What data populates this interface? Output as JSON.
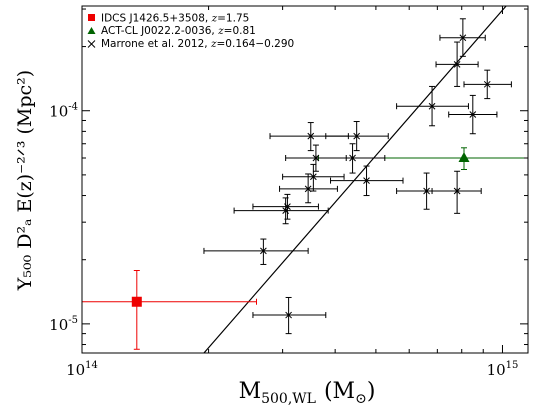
{
  "chart_data": {
    "type": "scatter",
    "xscale": "log",
    "yscale": "log",
    "xlim": [
      100000000000000.0,
      1150000000000000.0
    ],
    "ylim": [
      7.3e-06,
      0.00031
    ],
    "xlabel_main": "M",
    "xlabel_sub": "500,WL",
    "xlabel_unit_open": "(M",
    "xlabel_unit_sub": "⊙",
    "xlabel_unit_close": ")",
    "ylabel": "Y₅₀₀ D²ₐ E(z)⁻²ᐟ³  (Mpc²)",
    "x_ticks": [
      {
        "value": 100000000000000.0,
        "base": "10",
        "exp": "14"
      },
      {
        "value": 1000000000000000.0,
        "base": "10",
        "exp": "15"
      }
    ],
    "y_ticks": [
      {
        "value": 1e-05,
        "base": "10",
        "exp": "-5"
      },
      {
        "value": 0.0001,
        "base": "10",
        "exp": "-4"
      }
    ],
    "fit_line": {
      "points": [
        [
          195000000000000.0,
          7.3e-06
        ],
        [
          1020000000000000.0,
          0.00031
        ]
      ],
      "color": "#000000"
    },
    "series": [
      {
        "name": "IDCS J1426.5+3508,",
        "redshift_label": "1.75",
        "marker": "square",
        "color": "#ee0000",
        "points": [
          {
            "x": 135000000000000.0,
            "y": 1.27e-05,
            "xlo": 100000000000000.0,
            "xhi": 260000000000000.0,
            "ylo": 7.6e-06,
            "yhi": 1.78e-05
          }
        ]
      },
      {
        "name": "ACT-CL J0022.2-0036,",
        "redshift_label": "0.81",
        "marker": "triangle",
        "color": "#006400",
        "points": [
          {
            "x": 810000000000000.0,
            "y": 6e-05,
            "xlo": 365000000000000.0,
            "xhi": 1150000000000000.0,
            "ylo": 5.3e-05,
            "yhi": 6.7e-05
          }
        ]
      },
      {
        "name": "Marrone et al. 2012,",
        "redshift_label": "0.164−0.290",
        "marker": "cross",
        "color": "#000000",
        "points": [
          {
            "x": 310000000000000.0,
            "y": 1.1e-05,
            "xlo": 255000000000000.0,
            "xhi": 380000000000000.0,
            "ylo": 9e-06,
            "yhi": 1.33e-05
          },
          {
            "x": 270000000000000.0,
            "y": 2.2e-05,
            "xlo": 195000000000000.0,
            "xhi": 345000000000000.0,
            "ylo": 1.9e-05,
            "yhi": 2.5e-05
          },
          {
            "x": 305000000000000.0,
            "y": 3.4e-05,
            "xlo": 230000000000000.0,
            "xhi": 385000000000000.0,
            "ylo": 2.95e-05,
            "yhi": 3.9e-05
          },
          {
            "x": 308000000000000.0,
            "y": 3.55e-05,
            "xlo": 255000000000000.0,
            "xhi": 365000000000000.0,
            "ylo": 3.1e-05,
            "yhi": 4.05e-05
          },
          {
            "x": 345000000000000.0,
            "y": 4.3e-05,
            "xlo": 295000000000000.0,
            "xhi": 405000000000000.0,
            "ylo": 3.7e-05,
            "yhi": 5.05e-05
          },
          {
            "x": 355000000000000.0,
            "y": 4.9e-05,
            "xlo": 300000000000000.0,
            "xhi": 420000000000000.0,
            "ylo": 4.2e-05,
            "yhi": 5.6e-05
          },
          {
            "x": 360000000000000.0,
            "y": 6e-05,
            "xlo": 305000000000000.0,
            "xhi": 425000000000000.0,
            "ylo": 5.2e-05,
            "yhi": 6.9e-05
          },
          {
            "x": 350000000000000.0,
            "y": 7.6e-05,
            "xlo": 280000000000000.0,
            "xhi": 430000000000000.0,
            "ylo": 6.5e-05,
            "yhi": 8.8e-05
          },
          {
            "x": 440000000000000.0,
            "y": 6e-05,
            "xlo": 360000000000000.0,
            "xhi": 525000000000000.0,
            "ylo": 5.1e-05,
            "yhi": 7e-05
          },
          {
            "x": 450000000000000.0,
            "y": 7.6e-05,
            "xlo": 380000000000000.0,
            "xhi": 535000000000000.0,
            "ylo": 6.5e-05,
            "yhi": 8.9e-05
          },
          {
            "x": 475000000000000.0,
            "y": 4.7e-05,
            "xlo": 390000000000000.0,
            "xhi": 580000000000000.0,
            "ylo": 4e-05,
            "yhi": 5.5e-05
          },
          {
            "x": 660000000000000.0,
            "y": 4.2e-05,
            "xlo": 560000000000000.0,
            "xhi": 780000000000000.0,
            "ylo": 3.45e-05,
            "yhi": 5.1e-05
          },
          {
            "x": 680000000000000.0,
            "y": 0.000105,
            "xlo": 560000000000000.0,
            "xhi": 830000000000000.0,
            "ylo": 8.5e-05,
            "yhi": 0.00013
          },
          {
            "x": 780000000000000.0,
            "y": 4.2e-05,
            "xlo": 680000000000000.0,
            "xhi": 890000000000000.0,
            "ylo": 3.3e-05,
            "yhi": 5.2e-05
          },
          {
            "x": 780000000000000.0,
            "y": 0.000165,
            "xlo": 695000000000000.0,
            "xhi": 875000000000000.0,
            "ylo": 0.00013,
            "yhi": 0.00021
          },
          {
            "x": 805000000000000.0,
            "y": 0.00022,
            "xlo": 710000000000000.0,
            "xhi": 910000000000000.0,
            "ylo": 0.00018,
            "yhi": 0.00027
          },
          {
            "x": 850000000000000.0,
            "y": 9.6e-05,
            "xlo": 745000000000000.0,
            "xhi": 970000000000000.0,
            "ylo": 7.8e-05,
            "yhi": 0.000118
          },
          {
            "x": 920000000000000.0,
            "y": 0.000133,
            "xlo": 810000000000000.0,
            "xhi": 1050000000000000.0,
            "ylo": 0.000114,
            "yhi": 0.000155
          }
        ]
      }
    ]
  }
}
